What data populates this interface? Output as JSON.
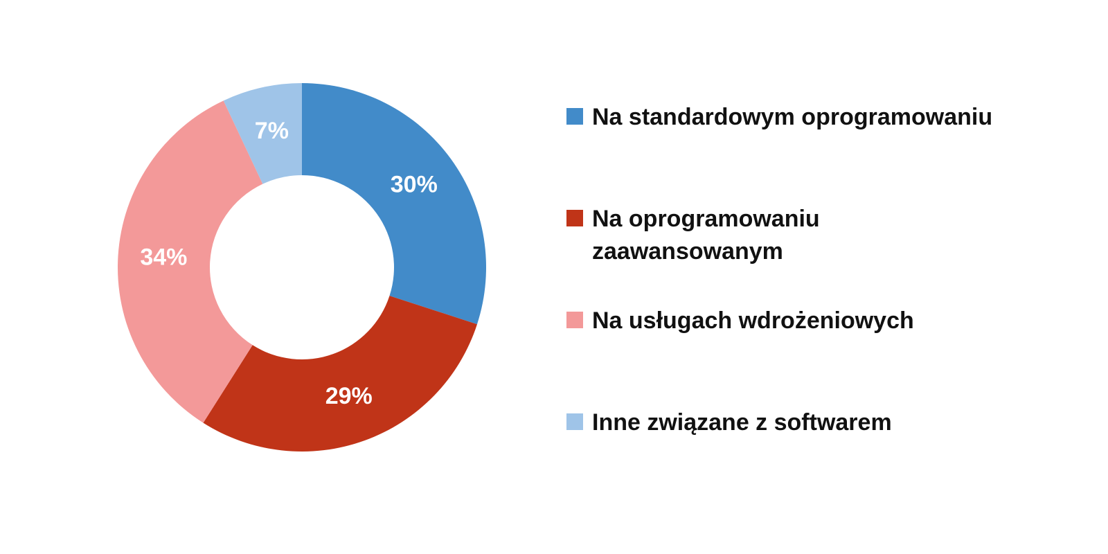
{
  "chart_data": {
    "type": "donut",
    "categories": [
      "Na standardowym oprogramowaniu",
      "Na oprogramowaniu zaawansowanym",
      "Na usługach wdrożeniowych",
      "Inne związane z softwarem"
    ],
    "values": [
      30,
      29,
      34,
      7
    ],
    "value_labels": [
      "30%",
      "29%",
      "34%",
      "7%"
    ],
    "colors": [
      "#428bc9",
      "#c03418",
      "#f39999",
      "#9fc4e8"
    ],
    "legend": "right"
  }
}
